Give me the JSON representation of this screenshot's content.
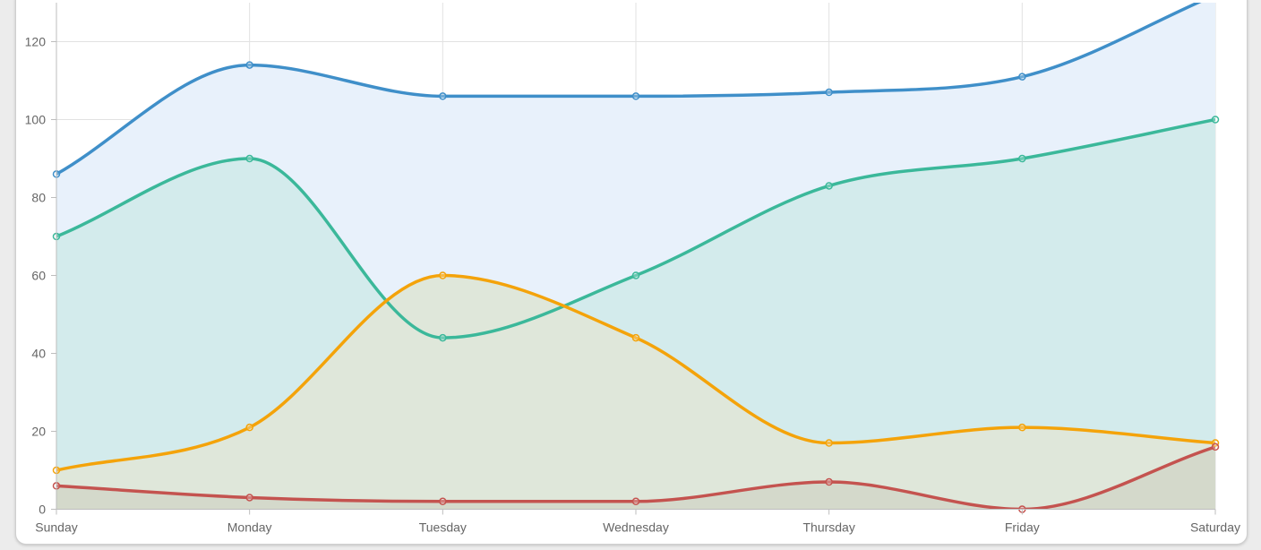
{
  "chart_data": {
    "type": "area",
    "categories": [
      "Sunday",
      "Monday",
      "Tuesday",
      "Wednesday",
      "Thursday",
      "Friday",
      "Saturday"
    ],
    "ylim": [
      0,
      130
    ],
    "yticks": [
      0,
      20,
      40,
      60,
      80,
      100,
      120
    ],
    "grid": true,
    "series": [
      {
        "values": [
          86,
          114,
          106,
          106,
          107,
          111,
          132
        ],
        "color": "#3f8fc9",
        "fill": "#e8f1fb"
      },
      {
        "values": [
          70,
          90,
          44,
          60,
          83,
          90,
          100
        ],
        "color": "#3bb89a",
        "fill": "#d3ebec"
      },
      {
        "values": [
          10,
          21,
          60,
          44,
          17,
          21,
          17
        ],
        "color": "#f4a30a",
        "fill": "#dfe7da"
      },
      {
        "values": [
          6,
          3,
          2,
          2,
          7,
          0,
          16
        ],
        "color": "#c4534f",
        "fill": "#d4d9cb"
      }
    ]
  }
}
